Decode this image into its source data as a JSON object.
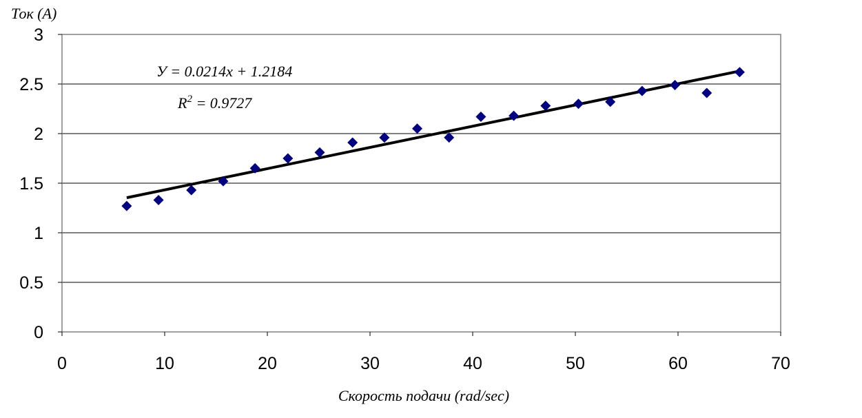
{
  "chart_data": {
    "type": "scatter",
    "ylabel": "Ток (А)",
    "xlabel": "Скорость подачи (rad/sec)",
    "xlim": [
      0,
      70
    ],
    "ylim": [
      0,
      3
    ],
    "x_ticks": [
      0,
      10,
      20,
      30,
      40,
      50,
      60,
      70
    ],
    "y_ticks": [
      0,
      0.5,
      1,
      1.5,
      2,
      2.5,
      3
    ],
    "x_tick_labels": [
      "0",
      "10",
      "20",
      "30",
      "40",
      "50",
      "60",
      "70"
    ],
    "y_tick_labels": [
      "0",
      "0.5",
      "1",
      "1.5",
      "2",
      "2.5",
      "3"
    ],
    "grid": "horizontal",
    "marker": "diamond",
    "marker_color": "#000080",
    "series": [
      {
        "x": [
          6.3,
          9.4,
          12.6,
          15.7,
          18.8,
          22.0,
          25.1,
          28.3,
          31.4,
          34.6,
          37.7,
          40.8,
          44.0,
          47.1,
          50.3,
          53.4,
          56.5,
          59.7,
          62.8,
          66.0
        ],
        "y": [
          1.27,
          1.33,
          1.43,
          1.52,
          1.65,
          1.75,
          1.81,
          1.91,
          1.96,
          2.05,
          1.96,
          2.17,
          2.18,
          2.28,
          2.3,
          2.32,
          2.43,
          2.49,
          2.41,
          2.62
        ]
      }
    ],
    "trendline": {
      "slope": 0.0214,
      "intercept": 1.2184,
      "x_range": [
        6.3,
        66.0
      ],
      "color": "#000000"
    },
    "annotations": {
      "equation": "У = 0.0214x + 1.2184",
      "r2_label": "R",
      "r2_sup": "2",
      "r2_value": " = 0.9727"
    }
  }
}
